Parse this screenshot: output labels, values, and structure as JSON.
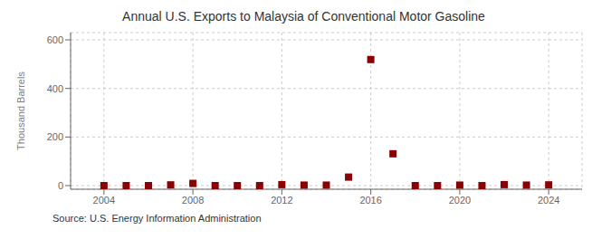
{
  "chart_data": {
    "type": "scatter",
    "title": "Annual U.S. Exports to Malaysia of Conventional Motor Gasoline",
    "ylabel": "Thousand Barrels",
    "source": "Source: U.S. Energy Information Administration",
    "x": [
      2004,
      2005,
      2006,
      2007,
      2008,
      2009,
      2010,
      2011,
      2012,
      2013,
      2014,
      2015,
      2016,
      2017,
      2018,
      2019,
      2020,
      2021,
      2022,
      2023,
      2024
    ],
    "values": [
      0,
      0,
      0,
      3,
      9,
      0,
      0,
      0,
      4,
      2,
      2,
      35,
      519,
      131,
      0,
      0,
      2,
      0,
      4,
      2,
      3
    ],
    "color": "#8b0000",
    "marker": "square",
    "xlim": [
      2002.5,
      2025.5
    ],
    "ylim": [
      -15,
      630
    ],
    "xticks": [
      2004,
      2008,
      2012,
      2016,
      2020,
      2024
    ],
    "yticks": [
      0,
      200,
      400,
      600
    ],
    "grid": true
  }
}
